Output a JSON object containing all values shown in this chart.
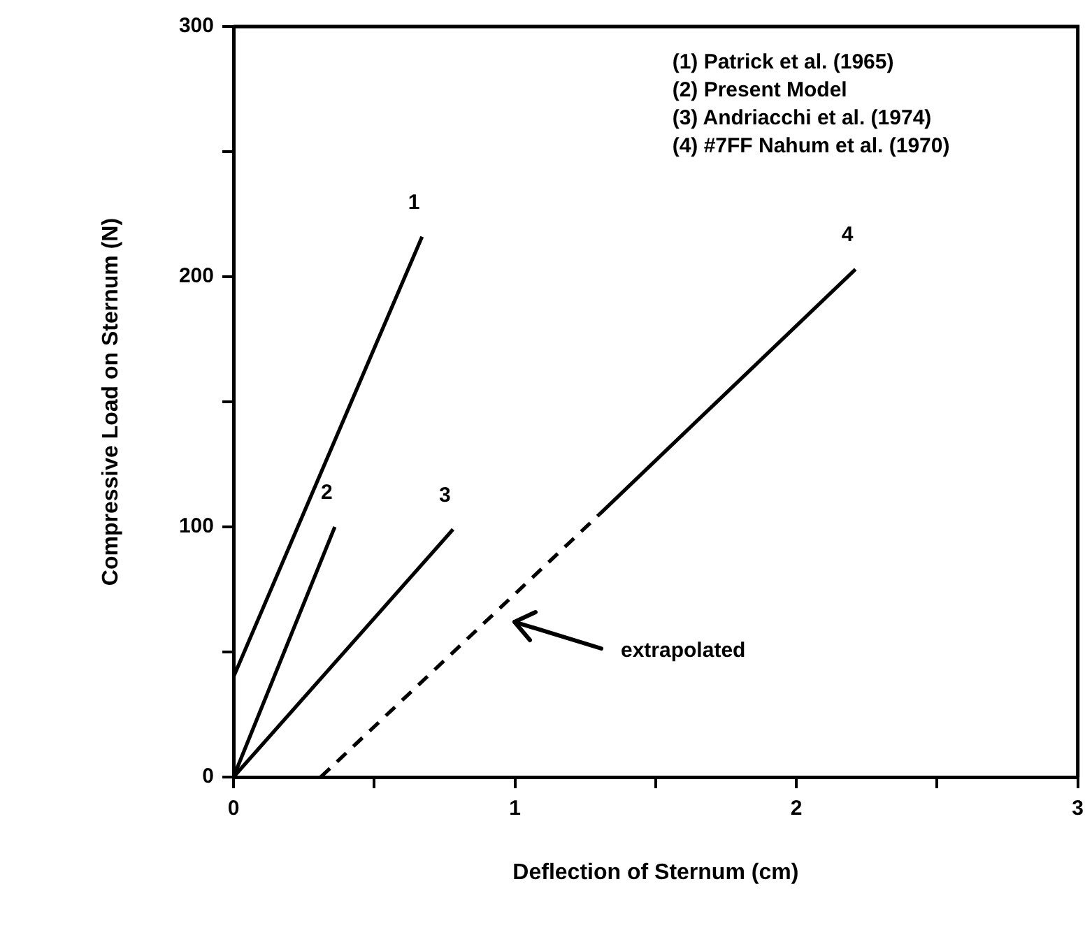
{
  "chart_data": {
    "type": "line",
    "xlabel": "Deflection of Sternum (cm)",
    "ylabel": "Compressive Load on Sternum (N)",
    "xlim": [
      0,
      3
    ],
    "ylim": [
      0,
      300
    ],
    "xticks": [
      0,
      {
        "value": 0.5,
        "label": null
      },
      1,
      {
        "value": 1.5,
        "label": null
      },
      2,
      {
        "value": 2.5,
        "label": null
      },
      3
    ],
    "yticks": [
      0,
      {
        "value": 50,
        "label": null
      },
      100,
      {
        "value": 150,
        "label": null
      },
      200,
      {
        "value": 250,
        "label": null
      },
      300
    ],
    "grid": false,
    "legend": false,
    "marker": "none",
    "series": [
      {
        "name": "1",
        "color": "#000000",
        "x": [
          0,
          0.67
        ],
        "values": [
          40,
          216
        ]
      },
      {
        "name": "2",
        "color": "#000000",
        "x": [
          0,
          0.36
        ],
        "values": [
          0,
          100
        ]
      },
      {
        "name": "3",
        "color": "#000000",
        "x": [
          0,
          0.78
        ],
        "values": [
          0,
          99
        ]
      },
      {
        "name": "4",
        "color": "#000000",
        "x": [
          1.3,
          2.21
        ],
        "values": [
          105,
          203
        ]
      },
      {
        "color": "#000000",
        "line_style": "dashed",
        "x": [
          0.31,
          1.3
        ],
        "values": [
          0,
          105
        ]
      }
    ],
    "annotations": [
      "(1) Patrick et al. (1965)",
      "(2) Present Model",
      "(3) Andriacchi et al. (1974)",
      "(4) #7FF Nahum et al. (1970)",
      "extrapolated"
    ]
  }
}
